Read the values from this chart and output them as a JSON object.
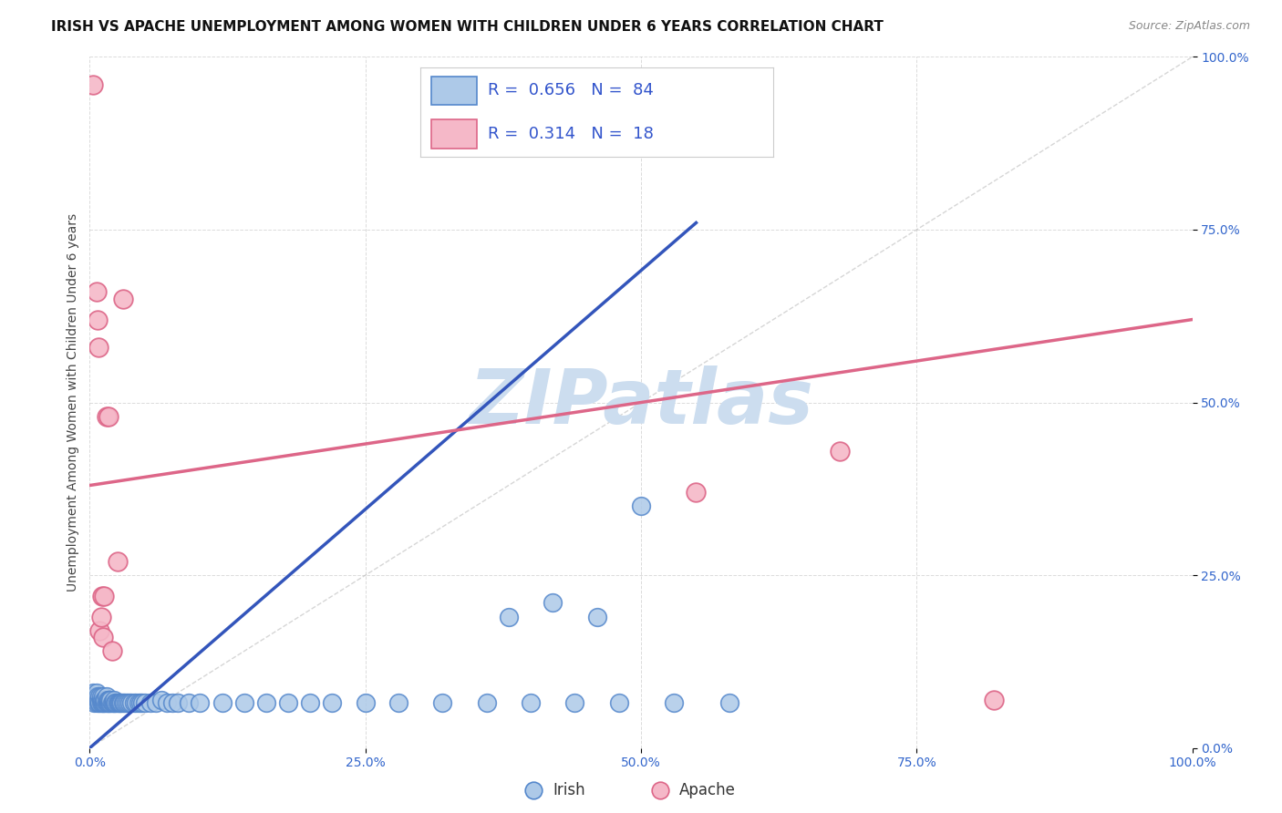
{
  "title": "IRISH VS APACHE UNEMPLOYMENT AMONG WOMEN WITH CHILDREN UNDER 6 YEARS CORRELATION CHART",
  "source": "Source: ZipAtlas.com",
  "ylabel": "Unemployment Among Women with Children Under 6 years",
  "xlim": [
    0,
    1
  ],
  "ylim": [
    0,
    1
  ],
  "xticks": [
    0.0,
    0.25,
    0.5,
    0.75,
    1.0
  ],
  "yticks": [
    0.0,
    0.25,
    0.5,
    0.75,
    1.0
  ],
  "xtick_labels": [
    "0.0%",
    "25.0%",
    "50.0%",
    "75.0%",
    "100.0%"
  ],
  "ytick_labels": [
    "0.0%",
    "25.0%",
    "50.0%",
    "75.0%",
    "100.0%"
  ],
  "irish_color": "#adc9e8",
  "apache_color": "#f5b8c8",
  "irish_edge_color": "#5588cc",
  "apache_edge_color": "#dd6688",
  "blue_line_color": "#3355bb",
  "pink_line_color": "#dd6688",
  "diag_line_color": "#bbbbbb",
  "legend_irish_label": "Irish",
  "legend_apache_label": "Apache",
  "irish_R": "0.656",
  "irish_N": "84",
  "apache_R": "0.314",
  "apache_N": "18",
  "watermark_text": "ZIPatlas",
  "watermark_color": "#ccddef",
  "irish_x": [
    0.002,
    0.003,
    0.004,
    0.005,
    0.005,
    0.006,
    0.006,
    0.007,
    0.007,
    0.008,
    0.008,
    0.009,
    0.009,
    0.01,
    0.01,
    0.01,
    0.011,
    0.011,
    0.012,
    0.012,
    0.013,
    0.013,
    0.014,
    0.014,
    0.015,
    0.015,
    0.016,
    0.016,
    0.017,
    0.017,
    0.018,
    0.018,
    0.019,
    0.019,
    0.02,
    0.021,
    0.022,
    0.022,
    0.023,
    0.024,
    0.025,
    0.026,
    0.027,
    0.028,
    0.029,
    0.03,
    0.031,
    0.033,
    0.034,
    0.036,
    0.038,
    0.04,
    0.042,
    0.044,
    0.046,
    0.048,
    0.05,
    0.055,
    0.06,
    0.065,
    0.07,
    0.075,
    0.08,
    0.09,
    0.1,
    0.12,
    0.14,
    0.16,
    0.18,
    0.2,
    0.22,
    0.25,
    0.28,
    0.32,
    0.36,
    0.4,
    0.44,
    0.48,
    0.53,
    0.58,
    0.38,
    0.42,
    0.46,
    0.5
  ],
  "irish_y": [
    0.07,
    0.08,
    0.065,
    0.07,
    0.075,
    0.065,
    0.08,
    0.07,
    0.075,
    0.065,
    0.07,
    0.075,
    0.065,
    0.07,
    0.065,
    0.075,
    0.065,
    0.07,
    0.065,
    0.075,
    0.065,
    0.07,
    0.065,
    0.07,
    0.065,
    0.075,
    0.065,
    0.07,
    0.065,
    0.07,
    0.065,
    0.07,
    0.065,
    0.07,
    0.065,
    0.065,
    0.065,
    0.07,
    0.065,
    0.065,
    0.065,
    0.065,
    0.065,
    0.065,
    0.065,
    0.065,
    0.065,
    0.065,
    0.065,
    0.065,
    0.065,
    0.065,
    0.065,
    0.065,
    0.065,
    0.065,
    0.065,
    0.065,
    0.065,
    0.07,
    0.065,
    0.065,
    0.065,
    0.065,
    0.065,
    0.065,
    0.065,
    0.065,
    0.065,
    0.065,
    0.065,
    0.065,
    0.065,
    0.065,
    0.065,
    0.065,
    0.065,
    0.065,
    0.065,
    0.065,
    0.19,
    0.21,
    0.19,
    0.35
  ],
  "apache_x": [
    0.003,
    0.005,
    0.006,
    0.007,
    0.008,
    0.009,
    0.01,
    0.011,
    0.012,
    0.013,
    0.015,
    0.017,
    0.02,
    0.025,
    0.03,
    0.55,
    0.68,
    0.82
  ],
  "apache_y": [
    0.96,
    0.07,
    0.66,
    0.62,
    0.58,
    0.17,
    0.19,
    0.22,
    0.16,
    0.22,
    0.48,
    0.48,
    0.14,
    0.27,
    0.65,
    0.37,
    0.43,
    0.07
  ],
  "irish_line_x0": 0.0,
  "irish_line_x1": 0.55,
  "irish_line_y0": 0.0,
  "irish_line_y1": 0.76,
  "apache_line_x0": 0.0,
  "apache_line_x1": 1.0,
  "apache_line_y0": 0.38,
  "apache_line_y1": 0.62,
  "background_color": "#ffffff",
  "grid_color": "#cccccc",
  "title_fontsize": 11,
  "axis_label_fontsize": 10,
  "tick_fontsize": 10,
  "legend_fontsize": 13,
  "watermark_fontsize": 60
}
